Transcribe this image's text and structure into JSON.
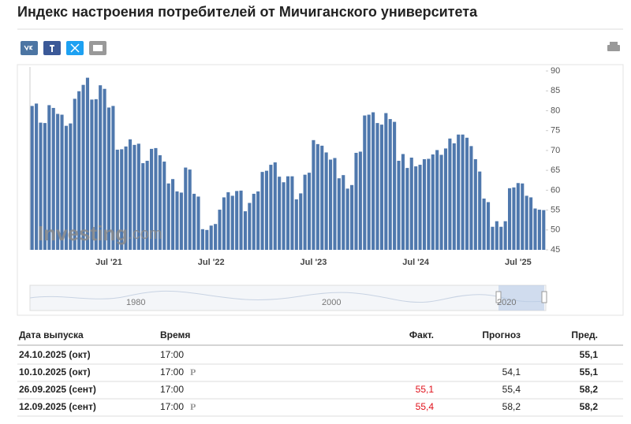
{
  "header": {
    "title": "Индекс настроения потребителей от Мичиганского университета"
  },
  "chart_data": {
    "type": "bar",
    "color": "#4f78ad",
    "watermark_brand": "Investing",
    "watermark_suffix": ".com",
    "categories": [
      null,
      null,
      null,
      null,
      null,
      null,
      null,
      null,
      null,
      null,
      null,
      null,
      null,
      null,
      null,
      null,
      null,
      null,
      "Jul '21",
      null,
      null,
      null,
      null,
      null,
      null,
      null,
      null,
      null,
      null,
      null,
      null,
      null,
      null,
      null,
      null,
      null,
      null,
      null,
      null,
      null,
      null,
      null,
      "Jul '22",
      null,
      null,
      null,
      null,
      null,
      null,
      null,
      null,
      null,
      null,
      null,
      null,
      null,
      null,
      null,
      null,
      null,
      null,
      null,
      null,
      null,
      null,
      null,
      "Jul '23",
      null,
      null,
      null,
      null,
      null,
      null,
      null,
      null,
      null,
      null,
      null,
      null,
      null,
      null,
      null,
      null,
      null,
      null,
      null,
      null,
      null,
      null,
      null,
      "Jul '24",
      null,
      null,
      null,
      null,
      null,
      null,
      null,
      null,
      null,
      null,
      null,
      null,
      null,
      null,
      null,
      null,
      null,
      null,
      null,
      null,
      null,
      null,
      null,
      "Jul '25",
      null,
      null,
      null,
      null,
      null,
      null
    ],
    "values": [
      81.2,
      81.8,
      77.0,
      76.9,
      81.4,
      80.7,
      79.2,
      79.0,
      76.2,
      76.8,
      83.0,
      84.9,
      86.5,
      88.3,
      82.8,
      82.9,
      86.4,
      85.5,
      80.8,
      81.2,
      70.2,
      70.3,
      71.0,
      72.8,
      71.4,
      71.7,
      66.8,
      67.4,
      70.4,
      70.6,
      68.8,
      67.2,
      61.7,
      62.8,
      59.7,
      59.4,
      65.7,
      65.2,
      59.1,
      58.4,
      50.2,
      50.0,
      51.1,
      51.5,
      55.1,
      58.2,
      59.5,
      58.6,
      59.8,
      59.9,
      54.7,
      56.8,
      59.1,
      59.7,
      64.6,
      64.9,
      66.4,
      67.0,
      63.4,
      62.0,
      63.5,
      63.5,
      57.7,
      59.2,
      63.9,
      64.4,
      72.6,
      71.6,
      71.2,
      69.5,
      67.7,
      68.1,
      63.0,
      63.8,
      60.4,
      61.3,
      69.4,
      69.7,
      78.8,
      79.0,
      79.6,
      76.9,
      76.5,
      79.4,
      77.9,
      77.2,
      67.4,
      69.1,
      65.6,
      68.2,
      66.0,
      66.4,
      67.8,
      67.9,
      69.0,
      70.1,
      68.9,
      70.5,
      73.0,
      71.8,
      74.0,
      74.0,
      73.2,
      71.1,
      67.8,
      64.7,
      57.9,
      57.0,
      50.8,
      52.2,
      50.8,
      52.2,
      60.5,
      60.7,
      61.8,
      61.7,
      58.6,
      58.2,
      55.4,
      55.1,
      55.0
    ],
    "ylim": [
      45,
      91
    ],
    "yticks": [
      45,
      50,
      55,
      60,
      65,
      70,
      75,
      80,
      85,
      90
    ],
    "grid": false,
    "navigator_labels": [
      "1980",
      "2000",
      "2020"
    ]
  },
  "table": {
    "actual_color": "#e0101a",
    "header": [
      "Дата выпуска",
      "Время",
      "Факт.",
      "Прогноз",
      "Пред."
    ],
    "badge": "P",
    "rows": [
      [
        "24.10.2025 (окт)",
        "17:00",
        false,
        null,
        null,
        "55,1"
      ],
      [
        "10.10.2025 (окт)",
        "17:00",
        true,
        null,
        "54,1",
        "55,1"
      ],
      [
        "26.09.2025 (сент)",
        "17:00",
        false,
        "55,1",
        "55,4",
        "58,2"
      ],
      [
        "12.09.2025 (сент)",
        "17:00",
        true,
        "55,4",
        "58,2",
        "58,2"
      ]
    ]
  }
}
